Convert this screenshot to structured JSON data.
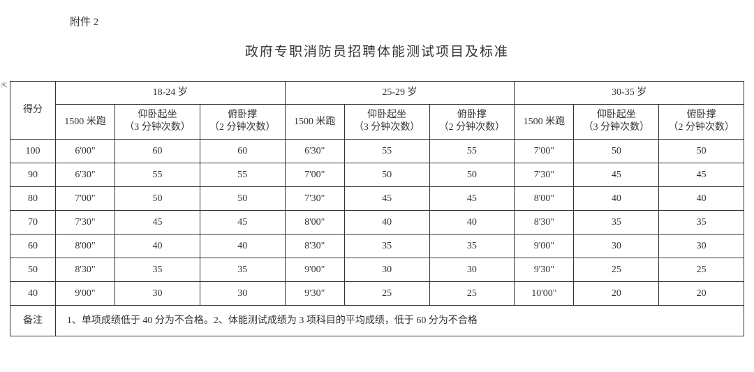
{
  "header_label": "附件 2",
  "title": "政府专职消防员招聘体能测试项目及标准",
  "table": {
    "score_header": "得分",
    "age_groups": [
      "18-24 岁",
      "25-29 岁",
      "30-35 岁"
    ],
    "sub_headers": {
      "run": "1500 米跑",
      "situp_line1": "仰卧起坐",
      "situp_line2": "（3 分钟次数）",
      "pushup_line1": "俯卧撑",
      "pushup_line2": "（2 分钟次数）"
    },
    "rows": [
      {
        "score": "100",
        "g1": [
          "6'00\"",
          "60",
          "60"
        ],
        "g2": [
          "6'30\"",
          "55",
          "55"
        ],
        "g3": [
          "7'00\"",
          "50",
          "50"
        ]
      },
      {
        "score": "90",
        "g1": [
          "6'30\"",
          "55",
          "55"
        ],
        "g2": [
          "7'00\"",
          "50",
          "50"
        ],
        "g3": [
          "7'30\"",
          "45",
          "45"
        ]
      },
      {
        "score": "80",
        "g1": [
          "7'00\"",
          "50",
          "50"
        ],
        "g2": [
          "7'30\"",
          "45",
          "45"
        ],
        "g3": [
          "8'00\"",
          "40",
          "40"
        ]
      },
      {
        "score": "70",
        "g1": [
          "7'30\"",
          "45",
          "45"
        ],
        "g2": [
          "8'00\"",
          "40",
          "40"
        ],
        "g3": [
          "8'30\"",
          "35",
          "35"
        ]
      },
      {
        "score": "60",
        "g1": [
          "8'00\"",
          "40",
          "40"
        ],
        "g2": [
          "8'30\"",
          "35",
          "35"
        ],
        "g3": [
          "9'00\"",
          "30",
          "30"
        ]
      },
      {
        "score": "50",
        "g1": [
          "8'30\"",
          "35",
          "35"
        ],
        "g2": [
          "9'00\"",
          "30",
          "30"
        ],
        "g3": [
          "9'30\"",
          "25",
          "25"
        ]
      },
      {
        "score": "40",
        "g1": [
          "9'00\"",
          "30",
          "30"
        ],
        "g2": [
          "9'30\"",
          "25",
          "25"
        ],
        "g3": [
          "10'00\"",
          "20",
          "20"
        ]
      }
    ],
    "note_label": "备注",
    "note_text": "1、单项成绩低于 40 分为不合格。2、体能测试成绩为 3 项科目的平均成绩，低于 60 分为不合格"
  },
  "colors": {
    "text": "#333333",
    "border": "#333333",
    "background": "#ffffff",
    "anchor": "#4a7ab5"
  },
  "font_sizes": {
    "header_label": 15,
    "title": 19,
    "cell": 14
  }
}
